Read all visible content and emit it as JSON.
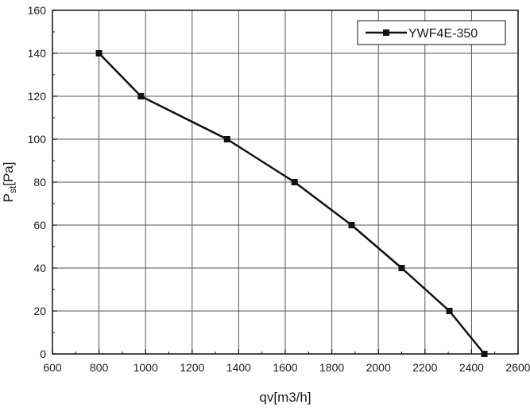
{
  "chart_data": {
    "type": "line",
    "x": [
      800,
      980,
      1350,
      1640,
      1885,
      2100,
      2305,
      2455
    ],
    "series": [
      {
        "name": "YWF4E-350",
        "values": [
          140,
          120,
          100,
          80,
          60,
          40,
          20,
          0
        ]
      }
    ],
    "xlabel": "qv[m3/h]",
    "ylabel_main": "P",
    "ylabel_sub": "st",
    "ylabel_suffix": "[Pa]",
    "xlim": [
      600,
      2600
    ],
    "ylim": [
      0,
      160
    ],
    "xticks": [
      600,
      800,
      1000,
      1200,
      1400,
      1600,
      1800,
      2000,
      2200,
      2400,
      2600
    ],
    "yticks": [
      0,
      20,
      40,
      60,
      80,
      100,
      120,
      140,
      160
    ],
    "grid": true,
    "legend_position": "top-right",
    "marker": "square",
    "line_color": "#111111"
  }
}
